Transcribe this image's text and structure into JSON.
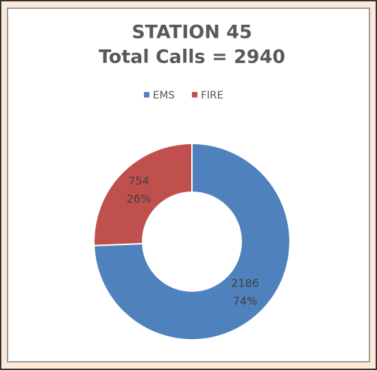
{
  "chart_data": {
    "type": "donut",
    "title": "STATION 45",
    "subtitle": "Total Calls = 2940",
    "categories": [
      "EMS",
      "FIRE"
    ],
    "values": [
      2186,
      754
    ],
    "percent_labels": [
      "74%",
      "26%"
    ],
    "colors": [
      "#4f81bd",
      "#c0504d"
    ],
    "legend": "top"
  }
}
